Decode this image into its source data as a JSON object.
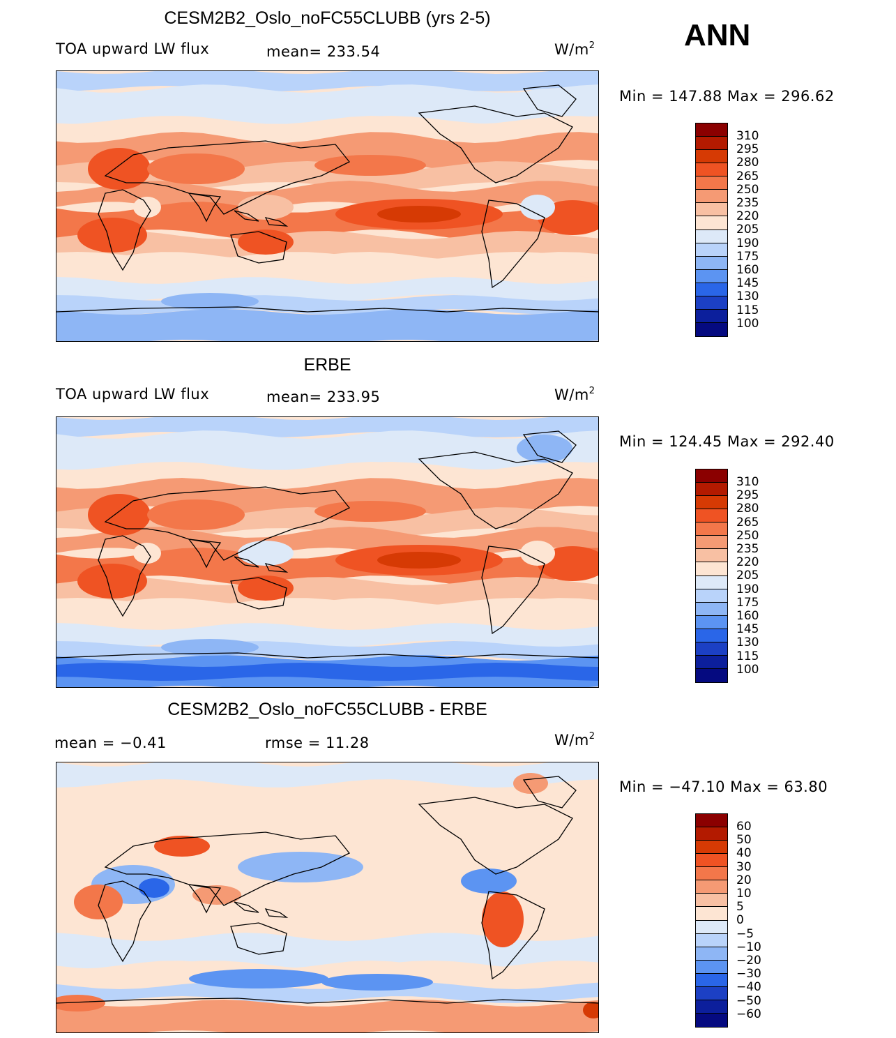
{
  "season": "ANN",
  "panels": [
    {
      "title": "CESM2B2_Oslo_noFC55CLUBB (yrs 2-5)",
      "left_label": "TOA upward LW flux",
      "center_label": "mean=  233.54",
      "units": "W/m",
      "units_sup": "2",
      "minmax": "Min  =  147.88  Max  =  296.62",
      "colorbar_levels": [
        "310",
        "295",
        "280",
        "265",
        "250",
        "235",
        "220",
        "205",
        "190",
        "175",
        "160",
        "145",
        "130",
        "115",
        "100"
      ],
      "colorbar_colors": [
        "#8b0000",
        "#b31a00",
        "#d63a04",
        "#ef5323",
        "#f3774a",
        "#f59a74",
        "#f8c0a3",
        "#fde5d3",
        "#dde9f8",
        "#b9d3fa",
        "#8eb6f5",
        "#5c94f2",
        "#2a66e8",
        "#1c40c4",
        "#0c1f9c",
        "#050a80"
      ],
      "map_style": "model"
    },
    {
      "title": "ERBE",
      "left_label": "TOA upward LW flux",
      "center_label": "mean=  233.95",
      "units": "W/m",
      "units_sup": "2",
      "minmax": "Min  =  124.45  Max  =  292.40",
      "colorbar_levels": [
        "310",
        "295",
        "280",
        "265",
        "250",
        "235",
        "220",
        "205",
        "190",
        "175",
        "160",
        "145",
        "130",
        "115",
        "100"
      ],
      "colorbar_colors": [
        "#8b0000",
        "#b31a00",
        "#d63a04",
        "#ef5323",
        "#f3774a",
        "#f59a74",
        "#f8c0a3",
        "#fde5d3",
        "#dde9f8",
        "#b9d3fa",
        "#8eb6f5",
        "#5c94f2",
        "#2a66e8",
        "#1c40c4",
        "#0c1f9c",
        "#050a80"
      ],
      "map_style": "obs"
    },
    {
      "title": "CESM2B2_Oslo_noFC55CLUBB - ERBE",
      "left_label": "mean  =    −0.41",
      "center_label": "rmse  =    11.28",
      "units": "W/m",
      "units_sup": "2",
      "minmax": "Min  =  −47.10  Max  =    63.80",
      "colorbar_levels": [
        "60",
        "50",
        "40",
        "30",
        "20",
        "10",
        "5",
        "0",
        "−5",
        "−10",
        "−20",
        "−30",
        "−40",
        "−50",
        "−60"
      ],
      "colorbar_colors": [
        "#8b0000",
        "#b31a00",
        "#d63a04",
        "#ef5323",
        "#f3774a",
        "#f59a74",
        "#f8c0a3",
        "#fde5d3",
        "#dde9f8",
        "#b9d3fa",
        "#8eb6f5",
        "#5c94f2",
        "#2a66e8",
        "#1c40c4",
        "#0c1f9c",
        "#050a80"
      ],
      "map_style": "diff"
    }
  ]
}
